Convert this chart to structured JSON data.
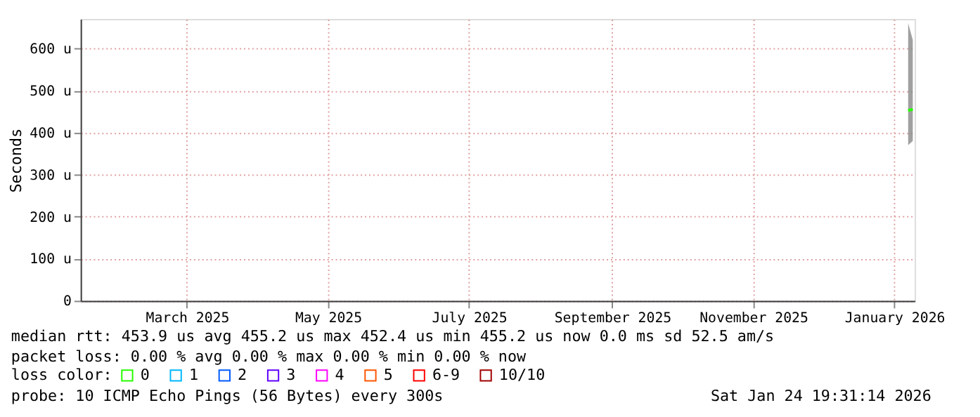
{
  "chart_data": {
    "type": "line",
    "ylabel": "Seconds",
    "xlim": [
      "2025-01-29",
      "2026-01-24T19:31"
    ],
    "xticks": [
      {
        "value": "2025-03-16",
        "label": "March 2025"
      },
      {
        "value": "2025-05-16",
        "label": "May 2025"
      },
      {
        "value": "2025-07-16",
        "label": "July 2025"
      },
      {
        "value": "2025-09-16",
        "label": "September 2025"
      },
      {
        "value": "2025-11-16",
        "label": "November 2025"
      },
      {
        "value": "2026-01-16",
        "label": "January 2026"
      }
    ],
    "ylim": [
      0,
      670
    ],
    "yticks": [
      0,
      {
        "value": 100,
        "label": "100 u"
      },
      {
        "value": 200,
        "label": "200 u"
      },
      {
        "value": 300,
        "label": "300 u"
      },
      {
        "value": 400,
        "label": "400 u"
      },
      {
        "value": 500,
        "label": "500 u"
      },
      {
        "value": 600,
        "label": "600 u"
      }
    ],
    "x": [
      "2026-01-22",
      "2026-01-23",
      "2026-01-24"
    ],
    "series": [
      {
        "name": "0",
        "color": "#26ff00",
        "values": [
          452,
          454,
          455
        ],
        "lower": [
          370,
          375,
          380
        ],
        "upper": [
          660,
          640,
          620
        ]
      },
      {
        "name": "1",
        "color": "#00b8ff",
        "values": [
          null,
          null,
          null
        ]
      },
      {
        "name": "2",
        "color": "#0059ff",
        "values": [
          null,
          null,
          null
        ]
      },
      {
        "name": "3",
        "color": "#5e00ff",
        "values": [
          null,
          null,
          null
        ]
      },
      {
        "name": "4",
        "color": "#ff00ff",
        "values": [
          null,
          null,
          null
        ]
      },
      {
        "name": "5",
        "color": "#ff5500",
        "values": [
          null,
          null,
          null
        ]
      },
      {
        "name": "6-9",
        "color": "#ff0000",
        "values": [
          null,
          null,
          null
        ]
      },
      {
        "name": "10/10",
        "color": "#a10000",
        "values": [
          null,
          null,
          null
        ]
      }
    ],
    "legend_title": "loss color:",
    "legend": "bottom",
    "grid": true,
    "annotations": [
      "median rtt:  453.9 us avg  455.2 us max  452.4 us min  455.2 us now  0.0 ms sd  52.5   am/s",
      "packet loss: 0.00 % avg  0.00 % max  0.00 % min  0.00 % now",
      "probe:       10 ICMP Echo Pings (56 Bytes) every 300s",
      "Sat Jan 24 19:31:14 2026"
    ]
  }
}
